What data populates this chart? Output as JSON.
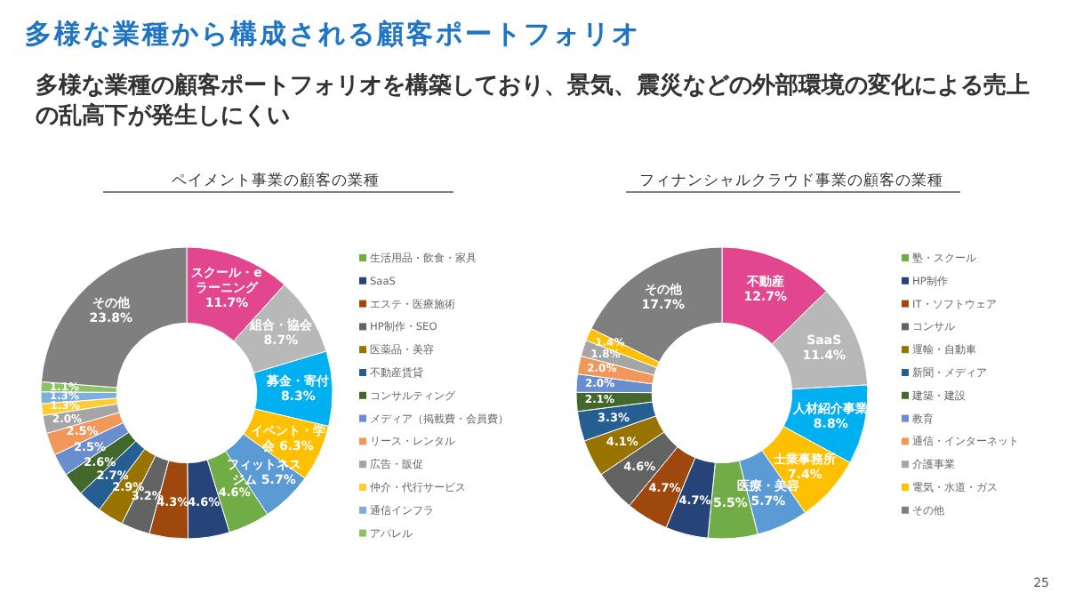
{
  "chart_data": [
    {
      "type": "donut",
      "title": "ペイメント事業の顧客の業種",
      "legend": "right",
      "annotations": [
        "多様な業種から構成される顧客ポートフォリオ",
        "多様な業種の顧客ポートフォリオを構築しており、景気、震災などの外部環境の変化による売上の乱高下が発生しにくい",
        "25"
      ],
      "categories": [
        null,
        null,
        null,
        null,
        null,
        "生活用品・飲食・家具",
        "SaaS",
        "エステ・医療施術",
        "HP制作・SEO",
        "医薬品・美容",
        "不動産賃貸",
        "コンサルティング",
        "メディア（掲載費・会員費）",
        "リース・レンタル",
        "広告・販促",
        "仲介・代行サービス",
        "通信インフラ",
        "アパレル",
        null
      ],
      "values": [
        11.7,
        8.7,
        8.3,
        6.3,
        5.7,
        4.6,
        4.6,
        4.3,
        3.2,
        2.9,
        2.7,
        2.6,
        2.5,
        2.5,
        2.0,
        1.3,
        1.3,
        1.1,
        23.8
      ],
      "value_labels": [
        "スクール・eラーニング 11.7%",
        "組合・協会 8.7%",
        "募金・寄付 8.3%",
        "イベント・学会 6.3%",
        "フィットネスジム 5.7%",
        "4.6%",
        "4.6%",
        "4.3%",
        "3.2%",
        "2.9%",
        "2.7%",
        "2.6%",
        "2.5%",
        "2.5%",
        "2.0%",
        "1.3%",
        "1.3%",
        "1.1%",
        "その他 23.8%"
      ],
      "colors": [
        "#e2468f",
        "#b8b8b8",
        "#00b0f0",
        "#ffc000",
        "#5b9bd5",
        "#70ad47",
        "#264478",
        "#9e480e",
        "#636363",
        "#997300",
        "#255e91",
        "#43682b",
        "#698ed0",
        "#f1975a",
        "#a5a5a5",
        "#ffcd33",
        "#7cafdd",
        "#8cc168",
        "#7f7f7f"
      ]
    },
    {
      "type": "donut",
      "title": "フィナンシャルクラウド事業の顧客の業種",
      "legend": "right",
      "categories": [
        null,
        null,
        null,
        null,
        null,
        "塾・スクール",
        "HP制作",
        "IT・ソフトウェア",
        "コンサル",
        "運輸・自動車",
        "新聞・メディア",
        "建築・建設",
        "教育",
        "通信・インターネット",
        "介護事業",
        "電気・水道・ガス",
        "その他"
      ],
      "values": [
        12.7,
        11.4,
        8.8,
        7.4,
        5.7,
        5.5,
        4.7,
        4.7,
        4.6,
        4.1,
        3.3,
        2.1,
        2.0,
        2.0,
        1.8,
        1.4,
        17.7
      ],
      "value_labels": [
        "不動産 12.7%",
        "SaaS 11.4%",
        "人材紹介事業 8.8%",
        "士業事務所 7.4%",
        "医療・美容 5.7%",
        "5.5%",
        "4.7%",
        "4.7%",
        "4.6%",
        "4.1%",
        "3.3%",
        "2.1%",
        "2.0%",
        "2.0%",
        "1.8%",
        "1.4%",
        "その他 17.7%"
      ],
      "colors": [
        "#e2468f",
        "#b8b8b8",
        "#00b0f0",
        "#ffc000",
        "#5b9bd5",
        "#70ad47",
        "#264478",
        "#9e480e",
        "#636363",
        "#997300",
        "#255e91",
        "#43682b",
        "#698ed0",
        "#f1975a",
        "#a5a5a5",
        "#ffc000",
        "#7f7f7f"
      ]
    }
  ]
}
